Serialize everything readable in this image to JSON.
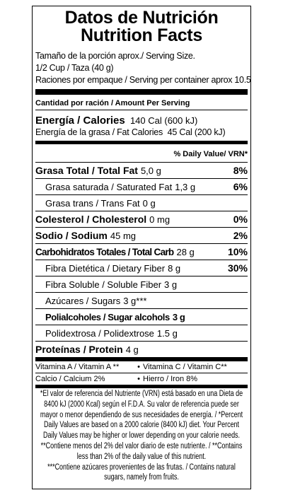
{
  "title": [
    "Datos de Nutrición",
    "Nutrition Facts"
  ],
  "serving": [
    "Tamaño de la porción aprox./ Serving Size.",
    "1/2 Cup / Taza (40 g)",
    "Raciones por empaque / Serving per container aprox 10.5"
  ],
  "amount_header": "Cantidad por ración / Amount Per Serving",
  "energy": {
    "label": "Energía / Calories",
    "value": "140 Cal (600 kJ)"
  },
  "fat_energy": {
    "label": "Energía de la grasa / Fat Calories",
    "value": "45 Cal (200 kJ)"
  },
  "dv_header": "% Daily Value/ VRN*",
  "nutrients": [
    {
      "label": "Grasa Total / Total Fat",
      "amount": "5,0 g",
      "dv": "8%"
    },
    {
      "label": "Grasa saturada / Saturated Fat",
      "amount": "1,3 g",
      "dv": "6%"
    },
    {
      "label": "Grasa trans / Trans Fat",
      "amount": "0 g"
    },
    {
      "label": "Colesterol / Cholesterol",
      "amount": "0 mg",
      "dv": "0%"
    },
    {
      "label": "Sodio / Sodium",
      "amount": "45 mg",
      "dv": "2%"
    },
    {
      "label": "Carbohidratos Totales / Total Carb",
      "amount": "28 g",
      "dv": "10%"
    },
    {
      "label": "Fibra Dietética / Dietary Fiber",
      "amount": "8 g",
      "dv": "30%"
    },
    {
      "label": "Fibra Soluble / Soluble Fiber",
      "amount": "3 g"
    },
    {
      "label": "Azúcares / Sugars",
      "amount": "3 g***"
    },
    {
      "label": "Polialcoholes / Sugar alcohols",
      "amount": "3 g"
    },
    {
      "label": "Polidextrosa / Polidextrose",
      "amount": "1.5 g"
    },
    {
      "label": "Proteínas / Protein",
      "amount": "4 g"
    }
  ],
  "vitamins": [
    [
      "Vitamina A / Vitamin A  **",
      "Vitamina C / Vitamin C**"
    ],
    [
      "Calcio / Calcium 2%",
      "Hierro / Iron 8%"
    ]
  ],
  "footnotes": [
    "*El valor de referencia del Nutriente (VRN) está basado en una Dieta de",
    "8400 kJ (2000 Kcal) según el F.D.A.  Su valor de referencia puede ser",
    "mayor o menor dependiendo de sus necesidades de energía. / *Percent",
    "Daily Values are based on a 2000 calorie (8400 kJ) diet. Your Percent",
    "Daily Values may be higher or lower depending on your calorie needs.",
    "**Contiene menos del 2% del valor diario de este nutriente. / **Contains",
    "less than 2% of the daily value of this nutrient.",
    "***Contiene azúcares provenientes de las frutas. / Contains natural",
    "sugars, namely from fruits."
  ]
}
